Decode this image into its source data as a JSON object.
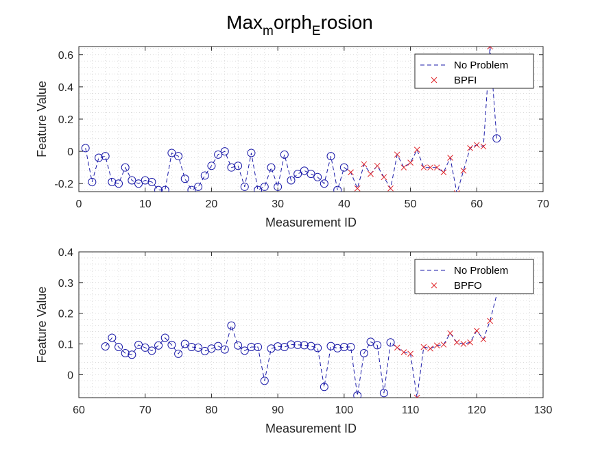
{
  "title": {
    "main": "Max",
    "sub1": "m",
    "mid": "orph",
    "sub2": "E",
    "end": "rosion"
  },
  "colors": {
    "no_problem": "#1a1aa8",
    "fault": "#e0262a",
    "axis": "#262626",
    "grid": "#c8c8c8"
  },
  "chart_data": [
    {
      "type": "line",
      "xlabel": "Measurement ID",
      "ylabel": "Feature Value",
      "xlim": [
        0,
        70
      ],
      "ylim": [
        -0.25,
        0.65
      ],
      "xticks": [
        0,
        10,
        20,
        30,
        40,
        50,
        60,
        70
      ],
      "yticks": [
        -0.2,
        0,
        0.2,
        0.4,
        0.6
      ],
      "xtick_labels": [
        "0",
        "10",
        "20",
        "30",
        "40",
        "50",
        "60",
        "70"
      ],
      "ytick_labels": [
        "-0.2",
        "0",
        "0.2",
        "0.4",
        "0.6"
      ],
      "grid": true,
      "legend": {
        "position": "top-right",
        "entries": [
          "No Problem",
          "BPFI"
        ]
      },
      "series": [
        {
          "name": "No Problem",
          "marker": "circle",
          "line": "dashed",
          "x": [
            1,
            2,
            3,
            4,
            5,
            6,
            7,
            8,
            9,
            10,
            11,
            12,
            13,
            14,
            15,
            16,
            17,
            18,
            19,
            20,
            21,
            22,
            23,
            24,
            25,
            26,
            27,
            28,
            29,
            30,
            31,
            32,
            33,
            34,
            35,
            36,
            37,
            38,
            39,
            40,
            41,
            42,
            43,
            44,
            45,
            46,
            47,
            48,
            49,
            50,
            51,
            52,
            53,
            54,
            55,
            56,
            57,
            58,
            59,
            60,
            61,
            62,
            63
          ],
          "y": [
            0.02,
            -0.19,
            -0.04,
            -0.03,
            -0.19,
            -0.2,
            -0.1,
            -0.18,
            -0.2,
            -0.18,
            -0.19,
            -0.24,
            -0.24,
            -0.01,
            -0.03,
            -0.17,
            -0.24,
            -0.22,
            -0.15,
            -0.09,
            -0.02,
            0.0,
            -0.1,
            -0.09,
            -0.22,
            -0.01,
            -0.24,
            -0.22,
            -0.1,
            -0.22,
            -0.02,
            -0.18,
            -0.14,
            -0.12,
            -0.14,
            -0.16,
            -0.2,
            -0.03,
            -0.24,
            -0.1,
            -0.13,
            -0.23,
            -0.08,
            -0.14,
            -0.09,
            -0.16,
            -0.23,
            -0.02,
            -0.1,
            -0.07,
            0.01,
            -0.1,
            -0.1,
            -0.1,
            -0.13,
            -0.04,
            -0.26,
            -0.12,
            0.02,
            0.04,
            0.03,
            0.65,
            0.08
          ],
          "circled_x": [
            1,
            2,
            3,
            4,
            5,
            6,
            7,
            8,
            9,
            10,
            11,
            12,
            13,
            14,
            15,
            16,
            17,
            18,
            19,
            20,
            21,
            22,
            23,
            24,
            25,
            26,
            27,
            28,
            29,
            30,
            31,
            32,
            33,
            34,
            35,
            36,
            37,
            38,
            39,
            40,
            63
          ],
          "circled_y": [
            0.02,
            -0.19,
            -0.04,
            -0.03,
            -0.19,
            -0.2,
            -0.1,
            -0.18,
            -0.2,
            -0.18,
            -0.19,
            -0.24,
            -0.24,
            -0.01,
            -0.03,
            -0.17,
            -0.24,
            -0.22,
            -0.15,
            -0.09,
            -0.02,
            0.0,
            -0.1,
            -0.09,
            -0.22,
            -0.01,
            -0.24,
            -0.22,
            -0.1,
            -0.22,
            -0.02,
            -0.18,
            -0.14,
            -0.12,
            -0.14,
            -0.16,
            -0.2,
            -0.03,
            -0.24,
            -0.1,
            0.08
          ]
        },
        {
          "name": "BPFI",
          "marker": "x",
          "line": "none",
          "x": [
            41,
            42,
            43,
            44,
            45,
            46,
            47,
            48,
            49,
            50,
            51,
            52,
            53,
            54,
            55,
            56,
            57,
            58,
            59,
            60,
            61,
            62
          ],
          "y": [
            -0.13,
            -0.23,
            -0.08,
            -0.14,
            -0.09,
            -0.16,
            -0.23,
            -0.02,
            -0.1,
            -0.07,
            0.01,
            -0.1,
            -0.1,
            -0.1,
            -0.13,
            -0.04,
            -0.26,
            -0.12,
            0.02,
            0.04,
            0.03,
            0.65
          ]
        }
      ]
    },
    {
      "type": "line",
      "xlabel": "Measurement ID",
      "ylabel": "Feature Value",
      "xlim": [
        60,
        130
      ],
      "ylim": [
        -0.075,
        0.4
      ],
      "xticks": [
        60,
        70,
        80,
        90,
        100,
        110,
        120,
        130
      ],
      "yticks": [
        0,
        0.1,
        0.2,
        0.3,
        0.4
      ],
      "xtick_labels": [
        "60",
        "70",
        "80",
        "90",
        "100",
        "110",
        "120",
        "130"
      ],
      "ytick_labels": [
        "0",
        "0.1",
        "0.2",
        "0.3",
        "0.4"
      ],
      "grid": true,
      "legend": {
        "position": "top-right",
        "entries": [
          "No Problem",
          "BPFO"
        ]
      },
      "series": [
        {
          "name": "No Problem",
          "marker": "circle",
          "line": "dashed",
          "x": [
            64,
            65,
            66,
            67,
            68,
            69,
            70,
            71,
            72,
            73,
            74,
            75,
            76,
            77,
            78,
            79,
            80,
            81,
            82,
            83,
            84,
            85,
            86,
            87,
            88,
            89,
            90,
            91,
            92,
            93,
            94,
            95,
            96,
            97,
            98,
            99,
            100,
            101,
            102,
            103,
            104,
            105,
            106,
            107,
            108,
            109,
            110,
            111,
            112,
            113,
            114,
            115,
            116,
            117,
            118,
            119,
            120,
            121,
            122,
            123
          ],
          "y": [
            0.092,
            0.12,
            0.09,
            0.07,
            0.065,
            0.097,
            0.088,
            0.078,
            0.095,
            0.12,
            0.097,
            0.068,
            0.1,
            0.09,
            0.088,
            0.077,
            0.085,
            0.093,
            0.082,
            0.16,
            0.095,
            0.078,
            0.09,
            0.09,
            -0.02,
            0.085,
            0.092,
            0.09,
            0.098,
            0.097,
            0.096,
            0.093,
            0.087,
            -0.04,
            0.093,
            0.086,
            0.09,
            0.09,
            -0.068,
            0.07,
            0.107,
            0.096,
            -0.06,
            0.105,
            0.088,
            0.073,
            0.068,
            -0.075,
            0.09,
            0.085,
            0.095,
            0.098,
            0.135,
            0.105,
            0.1,
            0.105,
            0.143,
            0.115,
            0.175,
            0.26
          ],
          "circled_x": [
            64,
            65,
            66,
            67,
            68,
            69,
            70,
            71,
            72,
            73,
            74,
            75,
            76,
            77,
            78,
            79,
            80,
            81,
            82,
            83,
            84,
            85,
            86,
            87,
            88,
            89,
            90,
            91,
            92,
            93,
            94,
            95,
            96,
            97,
            98,
            99,
            100,
            101,
            102,
            103,
            104,
            105,
            106,
            107
          ],
          "circled_y": [
            0.092,
            0.12,
            0.09,
            0.07,
            0.065,
            0.097,
            0.088,
            0.078,
            0.095,
            0.12,
            0.097,
            0.068,
            0.1,
            0.09,
            0.088,
            0.077,
            0.085,
            0.093,
            0.082,
            0.16,
            0.095,
            0.078,
            0.09,
            0.09,
            -0.02,
            0.085,
            0.092,
            0.09,
            0.098,
            0.097,
            0.096,
            0.093,
            0.087,
            -0.04,
            0.093,
            0.086,
            0.09,
            0.09,
            -0.068,
            0.07,
            0.107,
            0.096,
            -0.06,
            0.105
          ]
        },
        {
          "name": "BPFO",
          "marker": "x",
          "line": "none",
          "x": [
            108,
            109,
            110,
            111,
            112,
            113,
            114,
            115,
            116,
            117,
            118,
            119,
            120,
            121,
            122
          ],
          "y": [
            0.088,
            0.073,
            0.068,
            -0.075,
            0.09,
            0.085,
            0.095,
            0.098,
            0.135,
            0.105,
            0.1,
            0.105,
            0.143,
            0.115,
            0.175
          ]
        }
      ]
    }
  ]
}
